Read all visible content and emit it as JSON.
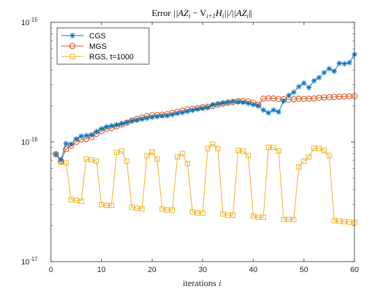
{
  "chart_data": {
    "type": "line",
    "title": "Error ||AZ_i − V_{i+1} H_i||/||AZ_i||",
    "xlabel": "iterations i",
    "ylabel": "",
    "xlim": [
      0,
      60
    ],
    "ylim": [
      1e-17,
      1e-15
    ],
    "yscale": "log",
    "xticks": [
      0,
      10,
      20,
      30,
      40,
      50,
      60
    ],
    "yticks": [
      1e-17,
      1e-16,
      1e-15
    ],
    "grid": false,
    "legend_position": "top-left",
    "x": [
      1,
      2,
      3,
      4,
      5,
      6,
      7,
      8,
      9,
      10,
      11,
      12,
      13,
      14,
      15,
      16,
      17,
      18,
      19,
      20,
      21,
      22,
      23,
      24,
      25,
      26,
      27,
      28,
      29,
      30,
      31,
      32,
      33,
      34,
      35,
      36,
      37,
      38,
      39,
      40,
      41,
      42,
      43,
      44,
      45,
      46,
      47,
      48,
      49,
      50,
      51,
      52,
      53,
      54,
      55,
      56,
      57,
      58,
      59,
      60
    ],
    "series": [
      {
        "name": "CGS",
        "color": "#0072bd",
        "marker": "asterisk",
        "values": [
          7.9e-17,
          7.1e-17,
          9.7e-17,
          9.6e-17,
          1.06e-16,
          1.12e-16,
          1.13e-16,
          1.15e-16,
          1.22e-16,
          1.29e-16,
          1.34e-16,
          1.37e-16,
          1.39e-16,
          1.42e-16,
          1.46e-16,
          1.5e-16,
          1.52e-16,
          1.55e-16,
          1.58e-16,
          1.61e-16,
          1.63e-16,
          1.65e-16,
          1.66e-16,
          1.69e-16,
          1.73e-16,
          1.76e-16,
          1.8e-16,
          1.84e-16,
          1.88e-16,
          1.91e-16,
          1.94e-16,
          2.05e-16,
          2.08e-16,
          2.12e-16,
          2.15e-16,
          2.18e-16,
          2.16e-16,
          2.14e-16,
          2.1e-16,
          2.05e-16,
          2e-16,
          1.85e-16,
          1.75e-16,
          1.85e-16,
          1.78e-16,
          2.2e-16,
          2.45e-16,
          2.6e-16,
          2.9e-16,
          3.1e-16,
          2.85e-16,
          3.25e-16,
          3.45e-16,
          3.8e-16,
          4.1e-16,
          3.9e-16,
          4.55e-16,
          4.5e-16,
          4.6e-16,
          5.4e-16
        ]
      },
      {
        "name": "MGS",
        "color": "#d95319",
        "marker": "circle",
        "values": [
          7.9e-17,
          6.9e-17,
          8.7e-17,
          9.3e-17,
          1e-16,
          1.05e-16,
          1.06e-16,
          1.1e-16,
          1.17e-16,
          1.23e-16,
          1.29e-16,
          1.31e-16,
          1.35e-16,
          1.4e-16,
          1.45e-16,
          1.51e-16,
          1.56e-16,
          1.6e-16,
          1.65e-16,
          1.67e-16,
          1.68e-16,
          1.69e-16,
          1.71e-16,
          1.75e-16,
          1.79e-16,
          1.83e-16,
          1.87e-16,
          1.89e-16,
          1.92e-16,
          1.95e-16,
          1.97e-16,
          2e-16,
          2.05e-16,
          2.09e-16,
          2.13e-16,
          2.16e-16,
          2.19e-16,
          2.2e-16,
          2.18e-16,
          2.13e-16,
          2.05e-16,
          2.3e-16,
          2.32e-16,
          2.31e-16,
          2.29e-16,
          2.28e-16,
          2.27e-16,
          2.28e-16,
          2.3e-16,
          2.29e-16,
          2.3e-16,
          2.31e-16,
          2.34e-16,
          2.36e-16,
          2.37e-16,
          2.38e-16,
          2.39e-16,
          2.4e-16,
          2.41e-16,
          2.42e-16
        ]
      },
      {
        "name": "RGS, t=1000",
        "color": "#edb120",
        "marker": "square",
        "values": [
          7.9e-17,
          6.8e-17,
          6.7e-17,
          3.3e-17,
          3.25e-17,
          3.2e-17,
          7.2e-17,
          7.1e-17,
          6.9e-17,
          3e-17,
          2.95e-17,
          2.95e-17,
          8.2e-17,
          8.4e-17,
          6.9e-17,
          2.85e-17,
          2.8e-17,
          2.75e-17,
          7.7e-17,
          8.2e-17,
          7.2e-17,
          2.75e-17,
          2.7e-17,
          2.7e-17,
          7.5e-17,
          8e-17,
          6.6e-17,
          2.6e-17,
          2.55e-17,
          2.55e-17,
          8.8e-17,
          9.6e-17,
          8.8e-17,
          2.5e-17,
          2.45e-17,
          2.45e-17,
          8.5e-17,
          8.4e-17,
          7.7e-17,
          2.4e-17,
          2.35e-17,
          2.35e-17,
          9e-17,
          9e-17,
          8.4e-17,
          2.25e-17,
          2.25e-17,
          2.25e-17,
          6.2e-17,
          6.9e-17,
          7.5e-17,
          8.9e-17,
          8.8e-17,
          8.5e-17,
          7.7e-17,
          2.2e-17,
          2.18e-17,
          2.16e-17,
          2.14e-17,
          2.12e-17
        ]
      }
    ]
  },
  "labels": {
    "title_prefix": "Error ",
    "title_formula": "||AZ",
    "title_i": "i",
    "title_mid": " − V",
    "title_sub2": "i+1",
    "title_h": "H",
    "title_i2": "i",
    "title_mid2": "||/||AZ",
    "title_i3": "i",
    "title_end": "||",
    "xlabel_word": "iterations ",
    "xlabel_var": "i",
    "ytick_base": "10",
    "ytick_exps": [
      "-17",
      "-16",
      "-15"
    ],
    "xtick_labels": [
      "0",
      "10",
      "20",
      "30",
      "40",
      "50",
      "60"
    ]
  }
}
